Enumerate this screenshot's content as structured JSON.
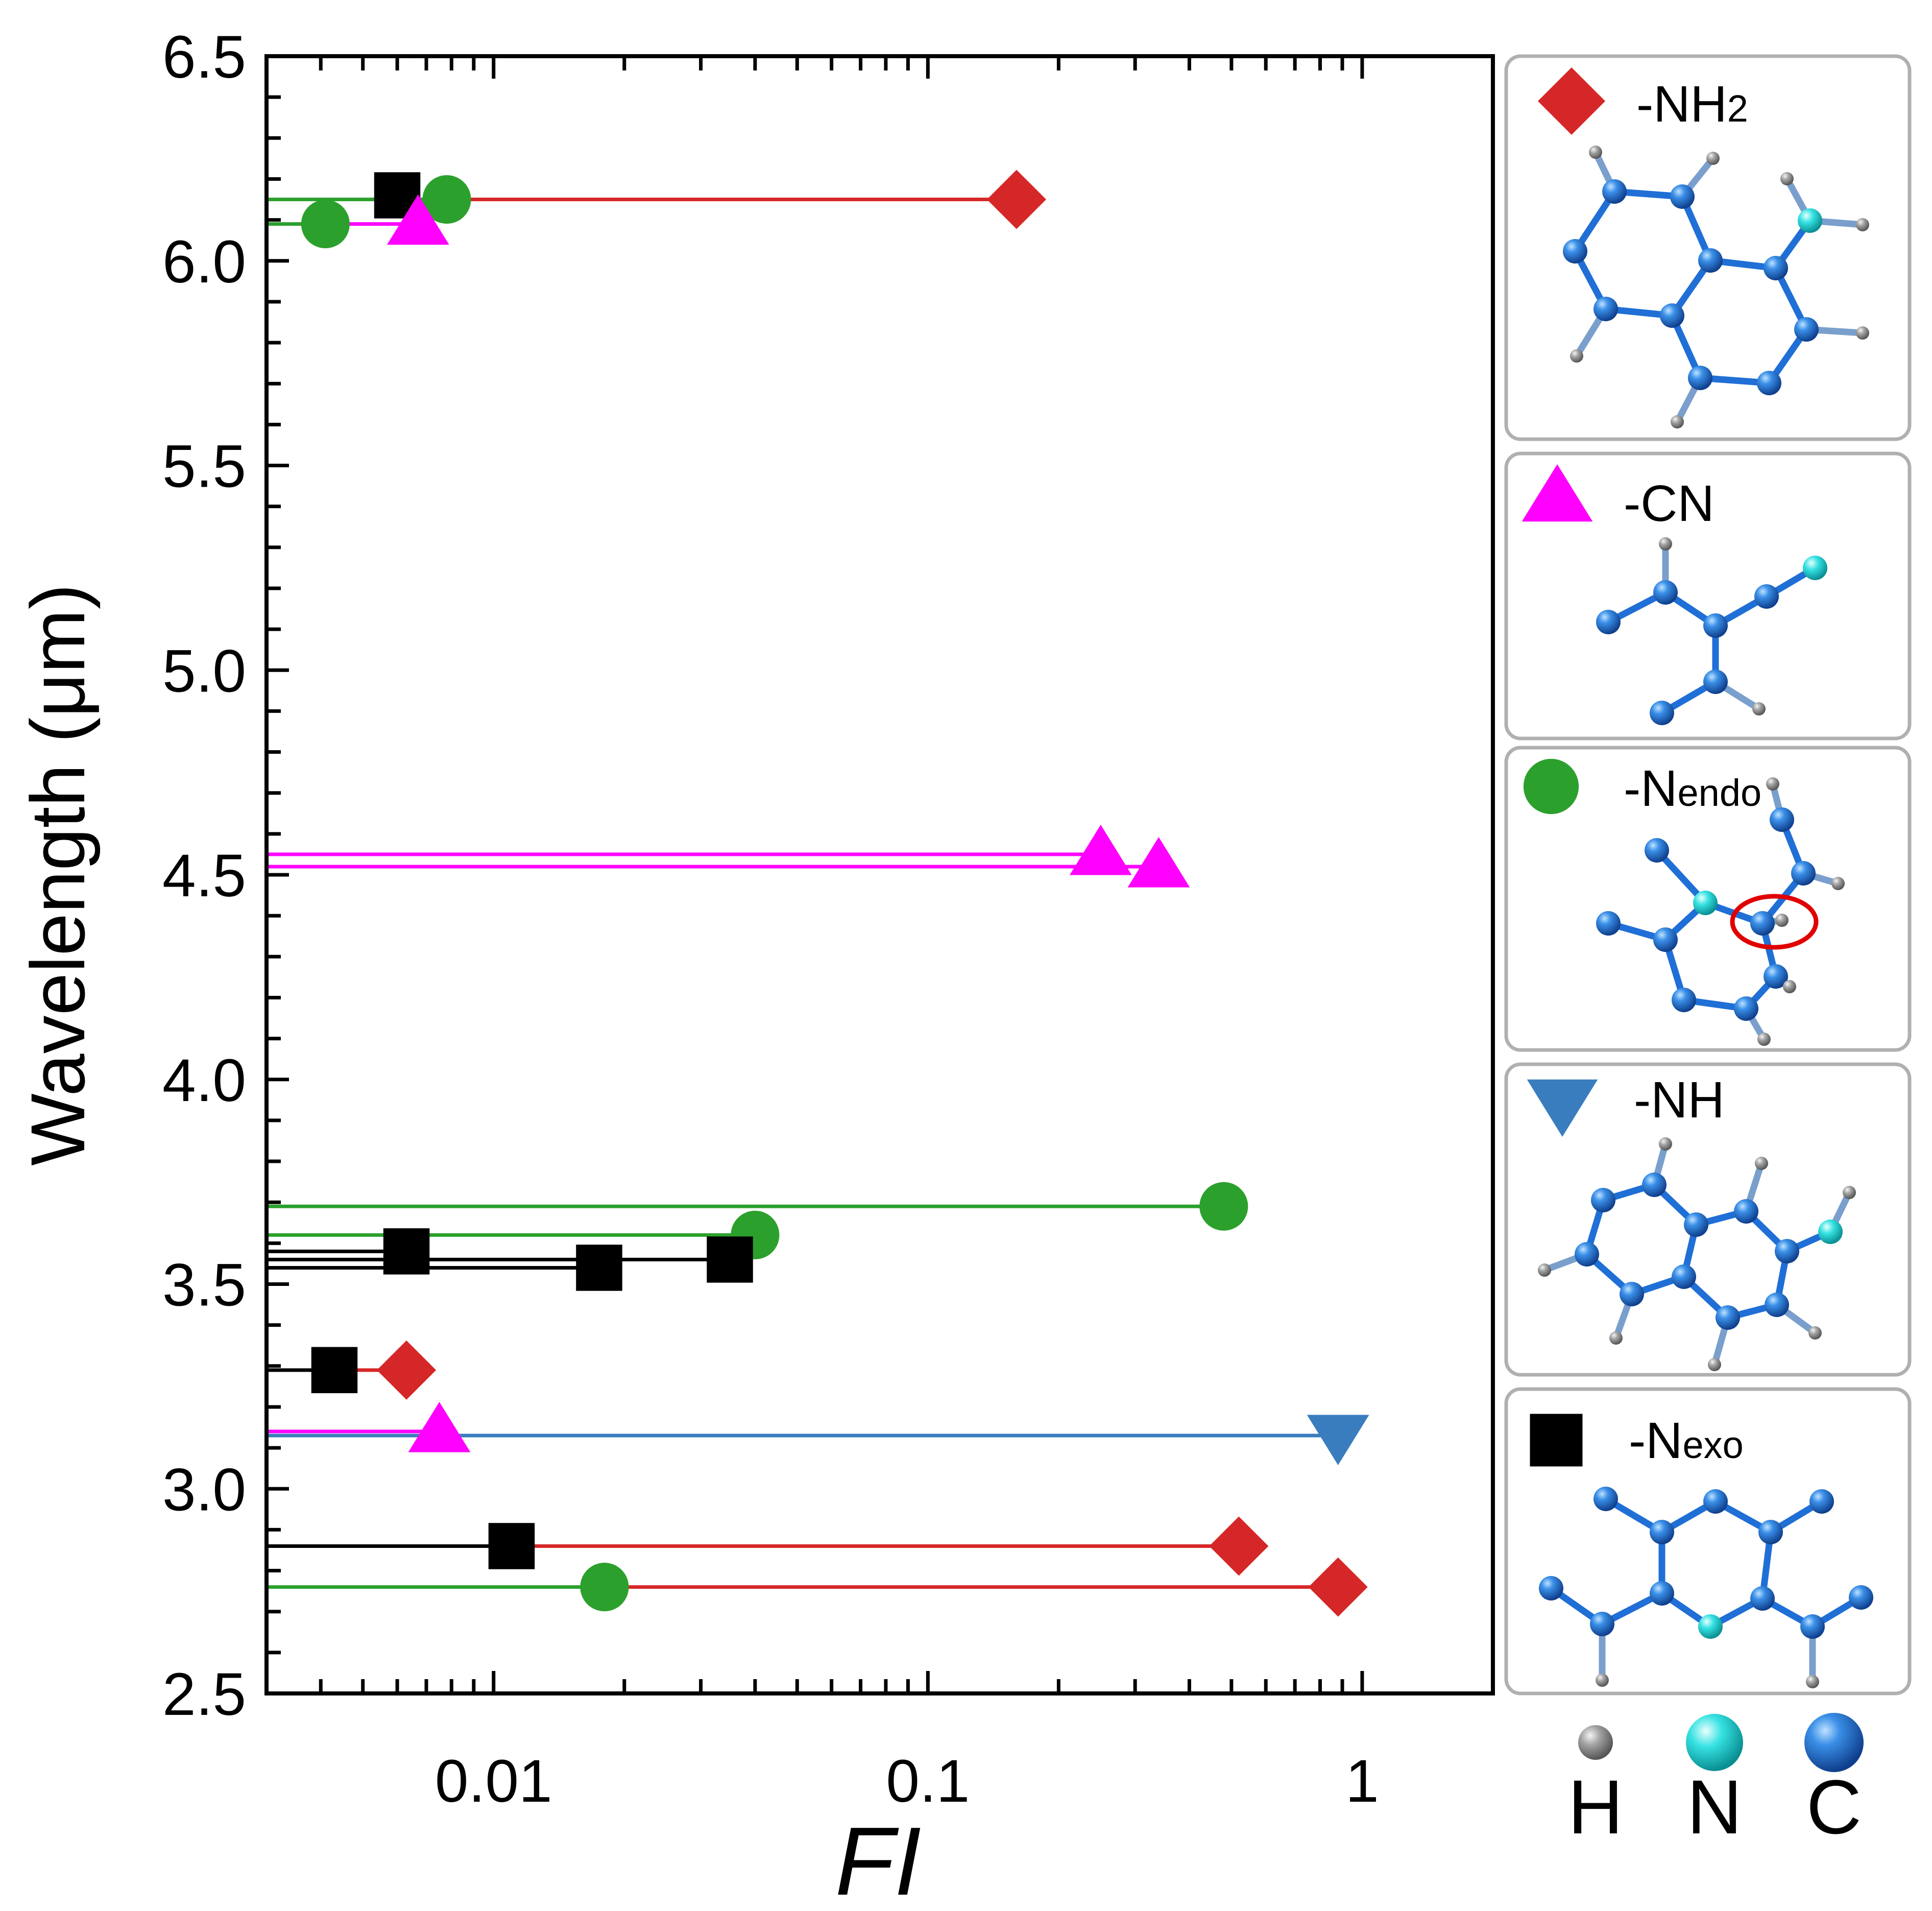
{
  "chart_data": {
    "type": "scatter",
    "title": "",
    "xlabel": "FI",
    "ylabel": "Wavelength (μm)",
    "xscale": "log",
    "xlim": [
      0.003,
      2.0
    ],
    "ylim": [
      2.5,
      6.5
    ],
    "x_ticks": [
      {
        "value": 0.01,
        "label": "0.01"
      },
      {
        "value": 0.1,
        "label": "0.1"
      },
      {
        "value": 1,
        "label": "1"
      }
    ],
    "y_ticks": [
      {
        "value": 2.5,
        "label": "2.5"
      },
      {
        "value": 3.0,
        "label": "3.0"
      },
      {
        "value": 3.5,
        "label": "3.5"
      },
      {
        "value": 4.0,
        "label": "4.0"
      },
      {
        "value": 4.5,
        "label": "4.5"
      },
      {
        "value": 5.0,
        "label": "5.0"
      },
      {
        "value": 5.5,
        "label": "5.5"
      },
      {
        "value": 6.0,
        "label": "6.0"
      },
      {
        "value": 6.5,
        "label": "6.5"
      }
    ],
    "series": [
      {
        "name": "-NH2",
        "marker": "diamond",
        "color": "#d62728",
        "points": [
          {
            "x": 0.16,
            "y": 6.15
          },
          {
            "x": 0.0063,
            "y": 3.29
          },
          {
            "x": 0.52,
            "y": 2.86
          },
          {
            "x": 0.88,
            "y": 2.76
          }
        ]
      },
      {
        "name": "-CN",
        "marker": "triangle-up",
        "color": "#ff00ff",
        "points": [
          {
            "x": 0.0067,
            "y": 6.09
          },
          {
            "x": 0.25,
            "y": 4.55
          },
          {
            "x": 0.34,
            "y": 4.52
          },
          {
            "x": 0.0075,
            "y": 3.14
          }
        ]
      },
      {
        "name": "-Nendo",
        "marker": "circle",
        "color": "#2ca02c",
        "points": [
          {
            "x": 0.0078,
            "y": 6.15
          },
          {
            "x": 0.0041,
            "y": 6.09
          },
          {
            "x": 0.48,
            "y": 3.69
          },
          {
            "x": 0.04,
            "y": 3.62
          },
          {
            "x": 0.018,
            "y": 2.76
          }
        ]
      },
      {
        "name": "-NH",
        "marker": "triangle-down",
        "color": "#3a7dbf",
        "points": [
          {
            "x": 0.88,
            "y": 3.13
          }
        ]
      },
      {
        "name": "-Nexo",
        "marker": "square",
        "color": "#000000",
        "points": [
          {
            "x": 0.006,
            "y": 6.16
          },
          {
            "x": 0.0063,
            "y": 3.58
          },
          {
            "x": 0.0175,
            "y": 3.54
          },
          {
            "x": 0.035,
            "y": 3.56
          },
          {
            "x": 0.0043,
            "y": 3.29
          },
          {
            "x": 0.011,
            "y": 2.86
          }
        ]
      }
    ],
    "lines": [
      {
        "color": "#2ca02c",
        "y": 6.15,
        "x_from": 0.003,
        "x_to": 0.0078
      },
      {
        "color": "#d62728",
        "y": 6.15,
        "x_from": 0.0078,
        "x_to": 0.16
      },
      {
        "color": "#2ca02c",
        "y": 6.09,
        "x_from": 0.003,
        "x_to": 0.0041
      },
      {
        "color": "#ff00ff",
        "y": 6.09,
        "x_from": 0.0041,
        "x_to": 0.0067
      },
      {
        "color": "#ff00ff",
        "y": 4.55,
        "x_from": 0.003,
        "x_to": 0.25
      },
      {
        "color": "#ff00ff",
        "y": 4.52,
        "x_from": 0.003,
        "x_to": 0.34
      },
      {
        "color": "#2ca02c",
        "y": 3.69,
        "x_from": 0.003,
        "x_to": 0.48
      },
      {
        "color": "#2ca02c",
        "y": 3.62,
        "x_from": 0.003,
        "x_to": 0.04
      },
      {
        "color": "#000000",
        "y": 3.58,
        "x_from": 0.003,
        "x_to": 0.0063
      },
      {
        "color": "#000000",
        "y": 3.56,
        "x_from": 0.003,
        "x_to": 0.035
      },
      {
        "color": "#000000",
        "y": 3.54,
        "x_from": 0.003,
        "x_to": 0.0175
      },
      {
        "color": "#000000",
        "y": 3.29,
        "x_from": 0.003,
        "x_to": 0.0043
      },
      {
        "color": "#d62728",
        "y": 3.29,
        "x_from": 0.0043,
        "x_to": 0.0063
      },
      {
        "color": "#ff00ff",
        "y": 3.14,
        "x_from": 0.003,
        "x_to": 0.0075
      },
      {
        "color": "#3a7dbf",
        "y": 3.13,
        "x_from": 0.003,
        "x_to": 0.88
      },
      {
        "color": "#000000",
        "y": 2.86,
        "x_from": 0.003,
        "x_to": 0.011
      },
      {
        "color": "#d62728",
        "y": 2.86,
        "x_from": 0.011,
        "x_to": 0.52
      },
      {
        "color": "#2ca02c",
        "y": 2.76,
        "x_from": 0.003,
        "x_to": 0.018
      },
      {
        "color": "#d62728",
        "y": 2.76,
        "x_from": 0.018,
        "x_to": 0.88
      }
    ]
  },
  "legend_panels": [
    {
      "key": "nh2",
      "main": "-NH",
      "sub": "2",
      "marker": "diamond",
      "color": "#d62728"
    },
    {
      "key": "cn",
      "main": "-CN",
      "sub": "",
      "marker": "triangle-up",
      "color": "#ff00ff"
    },
    {
      "key": "nendo",
      "main": "-N",
      "sub": "endo",
      "marker": "circle",
      "color": "#2ca02c"
    },
    {
      "key": "nh",
      "main": "-NH",
      "sub": "",
      "marker": "triangle-down",
      "color": "#3a7dbf"
    },
    {
      "key": "nexo",
      "main": "-N",
      "sub": "exo",
      "marker": "square",
      "color": "#000000"
    }
  ],
  "atom_key": [
    {
      "label": "H",
      "color": "#8c8c8c"
    },
    {
      "label": "N",
      "color": "#2fe0e0"
    },
    {
      "label": "C",
      "color": "#1f6fd6"
    }
  ],
  "colors": {
    "carbon": "#1f6fd6",
    "nitrogen": "#2fe0e0",
    "hydrogen": "#8c8c8c",
    "bond": "#1f6fd6",
    "panel_border": "#b0b0b0",
    "highlight": "#e00000"
  }
}
